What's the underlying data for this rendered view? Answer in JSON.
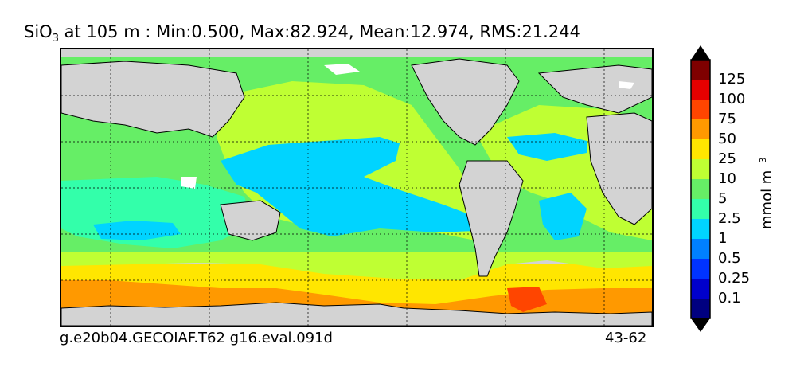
{
  "title": {
    "prefix": "SiO",
    "subscript": "3",
    "rest": " at 105 m : Min:0.500, Max:82.924, Mean:12.974, RMS:21.244"
  },
  "footer": {
    "left": "g.e20b04.GECOIAF.T62 g16.eval.091d",
    "right": "43-62"
  },
  "colorbar": {
    "units_prefix": "mmol m",
    "units_superscript": "−3",
    "labels": [
      "125",
      "100",
      "75",
      "50",
      "25",
      "10",
      "5",
      "2.5",
      "1",
      "0.5",
      "0.25",
      "0.1"
    ],
    "colors": [
      "#7f0000",
      "#e60000",
      "#ff4500",
      "#ff9900",
      "#ffe600",
      "#bfff33",
      "#66ee66",
      "#33ffaa",
      "#00d4ff",
      "#0080ff",
      "#0033ff",
      "#0000cc",
      "#000080"
    ]
  },
  "map": {
    "land_color": "#d3d3d3",
    "no_data_color": "#ffffff"
  }
}
